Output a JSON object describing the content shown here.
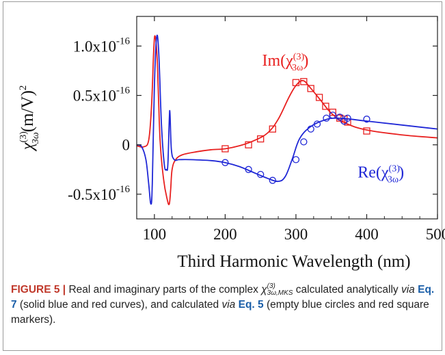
{
  "caption": {
    "label": "FIGURE 5 |",
    "p1": " Real and imaginary parts of the complex ",
    "chi_symbol": "χ",
    "chi_sup": "(3)",
    "chi_sub": "3ω,MKS",
    "p2": " calculated analytically ",
    "via1": "via",
    "p3": " ",
    "eq7": "Eq. 7",
    "p4": " (solid blue and red curves), and calculated ",
    "via2": "via",
    "p5": " ",
    "eq5": "Eq. 5",
    "p6": " (empty blue circles and red square markers)."
  },
  "chart_data": {
    "type": "line",
    "xlabel": "Third Harmonic Wavelength (nm)",
    "ylabel": "χ(3)3ω(m/V)2",
    "xlim": [
      75,
      500
    ],
    "ylim": [
      -0.75,
      1.3
    ],
    "y_unit_exponent": "-16",
    "x_ticks": [
      100,
      200,
      300,
      400,
      500
    ],
    "x_tick_labels": [
      "100",
      "200",
      "300",
      "400",
      "500"
    ],
    "y_ticks": [
      1.0,
      0.5,
      0,
      -0.5
    ],
    "y_tick_labels": [
      {
        "mant": "1.0x10",
        "exp": "-16"
      },
      {
        "mant": "0.5x10",
        "exp": "-16"
      },
      {
        "mant": "0",
        "exp": ""
      },
      {
        "mant": "-0.5x10",
        "exp": "-16"
      }
    ],
    "grid": false,
    "series": [
      {
        "name": "Im(χ(3)3ω)",
        "color": "#e8201f",
        "style": "line",
        "x": [
          75,
          85,
          92,
          96,
          99,
          101,
          104,
          108,
          113,
          118,
          121,
          123,
          125,
          130,
          140,
          160,
          180,
          200,
          220,
          240,
          260,
          275,
          290,
          300,
          310,
          320,
          335,
          350,
          370,
          400,
          450,
          500
        ],
        "y": [
          -0.01,
          -0.02,
          0.05,
          0.4,
          0.95,
          1.1,
          0.85,
          0.05,
          -0.35,
          -0.55,
          -0.6,
          -0.45,
          -0.25,
          -0.15,
          -0.1,
          -0.07,
          -0.05,
          -0.04,
          -0.01,
          0.04,
          0.12,
          0.26,
          0.48,
          0.6,
          0.65,
          0.58,
          0.45,
          0.32,
          0.22,
          0.15,
          0.1,
          0.07
        ]
      },
      {
        "name": "Im(χ(3)3ω) Eq. 5",
        "color": "#e8201f",
        "style": "squares",
        "x": [
          200,
          233,
          250,
          267,
          300,
          311,
          321,
          333,
          342,
          352,
          362,
          368,
          373,
          400
        ],
        "y": [
          -0.04,
          0.0,
          0.06,
          0.16,
          0.63,
          0.64,
          0.57,
          0.48,
          0.39,
          0.33,
          0.27,
          0.26,
          0.23,
          0.14
        ]
      },
      {
        "name": "Re(χ(3)3ω)",
        "color": "#1f27d6",
        "style": "line",
        "x": [
          75,
          82,
          88,
          92,
          95,
          97,
          100,
          103,
          106,
          110,
          114,
          117,
          119,
          121,
          122,
          124,
          128,
          135,
          150,
          180,
          200,
          220,
          240,
          260,
          275,
          285,
          295,
          305,
          320,
          340,
          360,
          400,
          450,
          500
        ],
        "y": [
          0.0,
          -0.02,
          -0.15,
          -0.4,
          -0.6,
          -0.4,
          0.6,
          1.08,
          0.95,
          0.2,
          -0.2,
          -0.25,
          -0.2,
          0.25,
          0.32,
          -0.05,
          -0.15,
          -0.15,
          -0.15,
          -0.16,
          -0.18,
          -0.22,
          -0.28,
          -0.34,
          -0.37,
          -0.32,
          -0.14,
          0.06,
          0.18,
          0.25,
          0.27,
          0.24,
          0.2,
          0.16
        ]
      },
      {
        "name": "Re(χ(3)3ω) Eq. 5",
        "color": "#1f27d6",
        "style": "circles",
        "x": [
          200,
          233,
          250,
          267,
          300,
          311,
          321,
          330,
          343,
          352,
          362,
          368,
          373,
          400
        ],
        "y": [
          -0.18,
          -0.25,
          -0.3,
          -0.36,
          -0.15,
          0.03,
          0.16,
          0.21,
          0.27,
          0.3,
          0.28,
          0.24,
          0.27,
          0.26
        ]
      }
    ],
    "annotations": [
      {
        "series": "im",
        "base": "Im(χ",
        "sup": "(3)",
        "sub": "3ω",
        "tail": ")",
        "color": "#e8201f",
        "at": [
          285,
          0.8
        ]
      },
      {
        "series": "re",
        "base": "Re(χ",
        "sup": "(3)",
        "sub": "3ω",
        "tail": ")",
        "color": "#1f27d6",
        "at": [
          420,
          -0.33
        ]
      }
    ]
  }
}
